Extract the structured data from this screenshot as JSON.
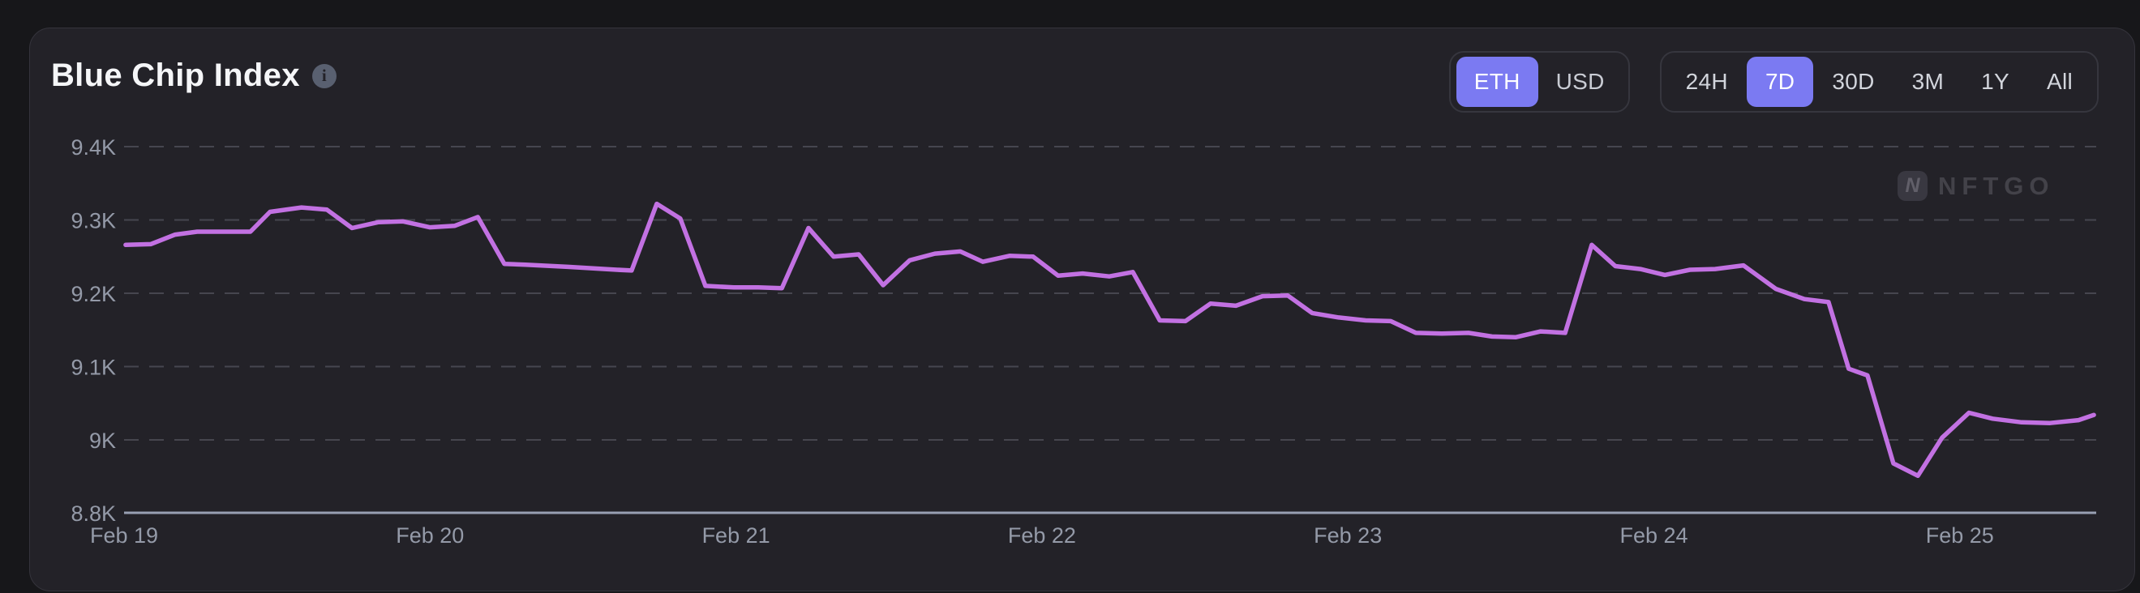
{
  "card": {
    "title": "Blue Chip Index",
    "watermark_text": "NFTGO"
  },
  "icons": {
    "info_glyph": "i",
    "logo_glyph": "N"
  },
  "controls": {
    "currency_toggle": {
      "options": [
        "ETH",
        "USD"
      ],
      "selected": "ETH"
    },
    "range_toggle": {
      "options": [
        "24H",
        "7D",
        "30D",
        "3M",
        "1Y",
        "All"
      ],
      "selected": "7D"
    }
  },
  "colors": {
    "accent": "#7b7af2",
    "line": "#c271e2",
    "page_bg": "#17171a",
    "card_bg": "#232228",
    "axis": "#98a0b3",
    "grid": "#46464f",
    "tick_text": "#949aa8"
  },
  "chart_data": {
    "type": "line",
    "title": "Blue Chip Index",
    "unit": "ETH",
    "grid": "horizontal-dashed",
    "legend": "none",
    "x_axis": {
      "tick_labels": [
        "Feb 19",
        "Feb 20",
        "Feb 21",
        "Feb 22",
        "Feb 23",
        "Feb 24",
        "Feb 25"
      ],
      "tick_days": [
        0,
        1,
        2,
        3,
        4,
        5,
        6
      ]
    },
    "y_axis": {
      "tick_labels": [
        "9.4K",
        "9.3K",
        "9.2K",
        "9.1K",
        "9K",
        "8.8K"
      ],
      "tick_values": [
        9.4,
        9.3,
        9.2,
        9.1,
        9.0,
        8.8
      ],
      "baseline_value": 8.8,
      "range_shown": [
        8.8,
        9.45
      ]
    },
    "series": [
      {
        "name": "Blue Chip Index (ETH)",
        "color": "#c271e2",
        "points": [
          [
            0.005,
            9.266
          ],
          [
            0.087,
            9.267
          ],
          [
            0.167,
            9.28
          ],
          [
            0.239,
            9.284
          ],
          [
            0.413,
            9.284
          ],
          [
            0.477,
            9.311
          ],
          [
            0.58,
            9.317
          ],
          [
            0.663,
            9.314
          ],
          [
            0.745,
            9.289
          ],
          [
            0.832,
            9.297
          ],
          [
            0.912,
            9.298
          ],
          [
            0.999,
            9.29
          ],
          [
            1.081,
            9.292
          ],
          [
            1.156,
            9.304
          ],
          [
            1.243,
            9.24
          ],
          [
            1.312,
            9.239
          ],
          [
            1.45,
            9.236
          ],
          [
            1.611,
            9.232
          ],
          [
            1.659,
            9.231
          ],
          [
            1.741,
            9.322
          ],
          [
            1.818,
            9.302
          ],
          [
            1.9,
            9.21
          ],
          [
            1.993,
            9.208
          ],
          [
            2.073,
            9.208
          ],
          [
            2.15,
            9.207
          ],
          [
            2.237,
            9.289
          ],
          [
            2.319,
            9.25
          ],
          [
            2.401,
            9.253
          ],
          [
            2.481,
            9.211
          ],
          [
            2.568,
            9.245
          ],
          [
            2.65,
            9.254
          ],
          [
            2.733,
            9.257
          ],
          [
            2.807,
            9.243
          ],
          [
            2.894,
            9.251
          ],
          [
            2.971,
            9.25
          ],
          [
            3.053,
            9.224
          ],
          [
            3.133,
            9.227
          ],
          [
            3.22,
            9.223
          ],
          [
            3.297,
            9.229
          ],
          [
            3.385,
            9.163
          ],
          [
            3.469,
            9.162
          ],
          [
            3.551,
            9.186
          ],
          [
            3.634,
            9.183
          ],
          [
            3.721,
            9.196
          ],
          [
            3.803,
            9.197
          ],
          [
            3.883,
            9.173
          ],
          [
            3.97,
            9.167
          ],
          [
            4.058,
            9.163
          ],
          [
            4.14,
            9.162
          ],
          [
            4.222,
            9.146
          ],
          [
            4.307,
            9.145
          ],
          [
            4.394,
            9.146
          ],
          [
            4.471,
            9.141
          ],
          [
            4.548,
            9.14
          ],
          [
            4.63,
            9.148
          ],
          [
            4.71,
            9.146
          ],
          [
            4.797,
            9.266
          ],
          [
            4.874,
            9.237
          ],
          [
            4.956,
            9.233
          ],
          [
            5.036,
            9.225
          ],
          [
            5.118,
            9.232
          ],
          [
            5.2,
            9.233
          ],
          [
            5.293,
            9.238
          ],
          [
            5.399,
            9.206
          ],
          [
            5.492,
            9.192
          ],
          [
            5.571,
            9.188
          ],
          [
            5.637,
            9.097
          ],
          [
            5.698,
            9.088
          ],
          [
            5.783,
            8.968
          ],
          [
            5.863,
            8.951
          ],
          [
            5.942,
            9.003
          ],
          [
            6.03,
            9.037
          ],
          [
            6.107,
            9.029
          ],
          [
            6.202,
            9.024
          ],
          [
            6.295,
            9.023
          ],
          [
            6.388,
            9.027
          ],
          [
            6.438,
            9.034
          ]
        ]
      }
    ]
  }
}
